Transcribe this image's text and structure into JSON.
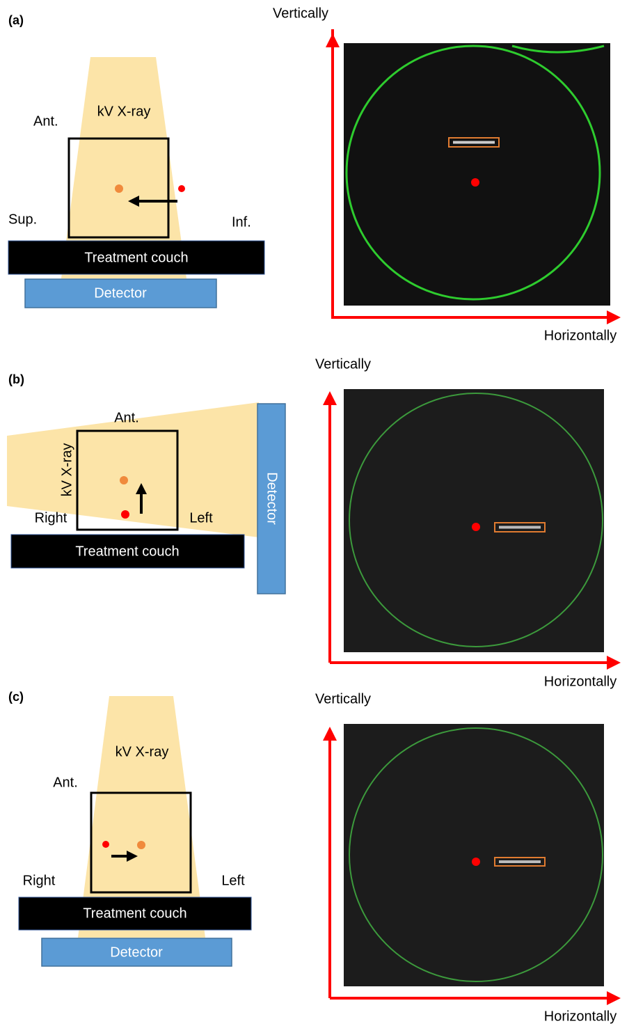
{
  "panels": [
    {
      "label": "(a)",
      "diagram": {
        "beam": "kV X-ray",
        "ant": "Ant.",
        "left_side": "Sup.",
        "right_side": "Inf.",
        "couch": "Treatment couch",
        "detector": "Detector"
      },
      "image": {
        "y_axis": "Vertically",
        "x_axis": "Horizontally"
      }
    },
    {
      "label": "(b)",
      "diagram": {
        "beam": "kV X-ray",
        "ant": "Ant.",
        "left_side": "Right",
        "right_side": "Left",
        "couch": "Treatment couch",
        "detector": "Detector"
      },
      "image": {
        "y_axis": "Vertically",
        "x_axis": "Horizontally"
      }
    },
    {
      "label": "(c)",
      "diagram": {
        "beam": "kV X-ray",
        "ant": "Ant.",
        "left_side": "Right",
        "right_side": "Left",
        "couch": "Treatment couch",
        "detector": "Detector"
      },
      "image": {
        "y_axis": "Vertically",
        "x_axis": "Horizontally"
      }
    }
  ]
}
